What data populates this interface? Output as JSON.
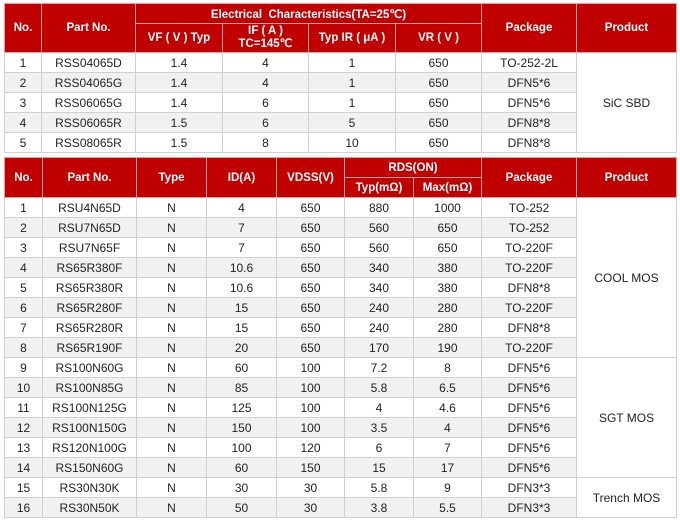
{
  "sic_table": {
    "headers": {
      "no": "No.",
      "part": "Part No.",
      "group": "Electrical  Characteristics(TA=25℃)",
      "vf": "VF ( V ) Typ",
      "if_a": "IF ( A )",
      "if_b": "TC=145℃",
      "ir": "Typ IR ( μA )",
      "vr": "VR ( V )",
      "package": "Package",
      "product": "Product"
    },
    "product": "SiC SBD",
    "rows": [
      [
        "1",
        "RSS04065D",
        "1.4",
        "4",
        "1",
        "650",
        "TO-252-2L"
      ],
      [
        "2",
        "RSS04065G",
        "1.4",
        "4",
        "1",
        "650",
        "DFN5*6"
      ],
      [
        "3",
        "RSS06065G",
        "1.4",
        "6",
        "1",
        "650",
        "DFN5*6"
      ],
      [
        "4",
        "RSS06065R",
        "1.5",
        "6",
        "5",
        "650",
        "DFN8*8"
      ],
      [
        "5",
        "RSS08065R",
        "1.5",
        "8",
        "10",
        "650",
        "DFN8*8"
      ]
    ]
  },
  "mos_table": {
    "headers": {
      "no": "No.",
      "part": "Part No.",
      "type": "Type",
      "id": "ID(A)",
      "vdss": "VDSS(V)",
      "rds": "RDS(ON)",
      "typ": "Typ(mΩ)",
      "max": "Max(mΩ)",
      "package": "Package",
      "product": "Product"
    },
    "groups": [
      {
        "name": "COOL MOS",
        "count": 8
      },
      {
        "name": "SGT MOS",
        "count": 6
      },
      {
        "name": "Trench MOS",
        "count": 2
      }
    ],
    "rows": [
      [
        "1",
        "RSU4N65D",
        "N",
        "4",
        "650",
        "880",
        "1000",
        "TO-252"
      ],
      [
        "2",
        "RSU7N65D",
        "N",
        "7",
        "650",
        "560",
        "650",
        "TO-252"
      ],
      [
        "3",
        "RSU7N65F",
        "N",
        "7",
        "650",
        "560",
        "650",
        "TO-220F"
      ],
      [
        "4",
        "RS65R380F",
        "N",
        "10.6",
        "650",
        "340",
        "380",
        "TO-220F"
      ],
      [
        "5",
        "RS65R380R",
        "N",
        "10.6",
        "650",
        "340",
        "380",
        "DFN8*8"
      ],
      [
        "6",
        "RS65R280F",
        "N",
        "15",
        "650",
        "240",
        "280",
        "TO-220F"
      ],
      [
        "7",
        "RS65R280R",
        "N",
        "15",
        "650",
        "240",
        "280",
        "DFN8*8"
      ],
      [
        "8",
        "RS65R190F",
        "N",
        "20",
        "650",
        "170",
        "190",
        "TO-220F"
      ],
      [
        "9",
        "RS100N60G",
        "N",
        "60",
        "100",
        "7.2",
        "8",
        "DFN5*6"
      ],
      [
        "10",
        "RS100N85G",
        "N",
        "85",
        "100",
        "5.8",
        "6.5",
        "DFN5*6"
      ],
      [
        "11",
        "RS100N125G",
        "N",
        "125",
        "100",
        "4",
        "4.6",
        "DFN5*6"
      ],
      [
        "12",
        "RS100N150G",
        "N",
        "150",
        "100",
        "3.5",
        "4",
        "DFN5*6"
      ],
      [
        "13",
        "RS120N100G",
        "N",
        "100",
        "120",
        "6",
        "7",
        "DFN5*6"
      ],
      [
        "14",
        "RS150N60G",
        "N",
        "60",
        "150",
        "15",
        "17",
        "DFN5*6"
      ],
      [
        "15",
        "RS30N30K",
        "N",
        "30",
        "30",
        "5.8",
        "9",
        "DFN3*3"
      ],
      [
        "16",
        "RS30N50K",
        "N",
        "50",
        "30",
        "3.8",
        "5.5",
        "DFN3*3"
      ]
    ]
  },
  "colors": {
    "header": "#c00000",
    "alt_row": "#f1f1f1"
  }
}
